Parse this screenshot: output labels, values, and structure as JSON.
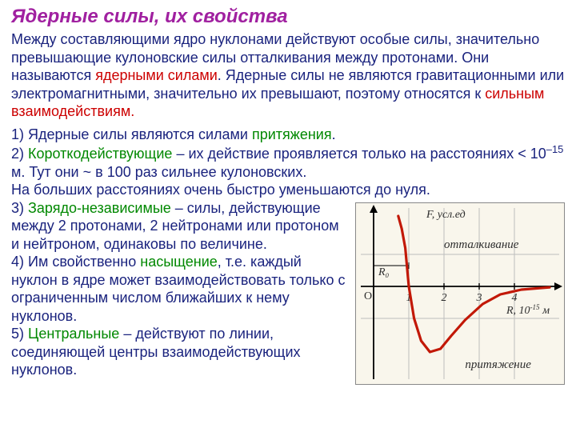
{
  "colors": {
    "body_text": "#1a237e",
    "title": "#a020a0",
    "accent_red": "#cc0000",
    "accent_green": "#008800",
    "chart_curve": "#c21807",
    "chart_axis": "#000000",
    "chart_grid": "#bdbdbd",
    "chart_bg": "#f9f6ec",
    "chart_label": "#2e2e2e"
  },
  "title": "Ядерные силы, их свойства",
  "intro": {
    "p1": "Между составляющими ядро нуклонами действуют особые силы, значительно превышающие кулоновские силы отталкивания между протонами. Они называются ",
    "red1": "ядерными силами",
    "p2": ". Ядерные силы не являются гравитационными или электромагнитными, значительно их превышают, поэтому относятся к ",
    "red2": "сильным взаимодействиям."
  },
  "items": {
    "i1a": "1) Ядерные силы являются силами ",
    "i1b": "притяжения",
    "i1c": ".",
    "i2a": "2) ",
    "i2b": "Короткодействующие",
    "i2c": " – их действие проявляется только на расстояниях  < 10",
    "i2exp": "–15",
    "i2d": " м. Тут они ~ в 100 раз сильнее кулоновских.",
    "i2e": "На больших расстояниях очень быстро уменьшаются до нуля.",
    "i3a": "3) ",
    "i3b": "Зарядо-независимые",
    "i3c": " – силы, действующие между 2 протонами, 2 нейтронами или протоном и нейтроном, одинаковы по величине.",
    "i4a": "4) Им свойственно ",
    "i4b": "насыщение",
    "i4c": ", т.е. каждый нуклон в ядре может взаимодействовать только с ограниченным числом ближайших к нему нуклонов.",
    "i5a": "5) ",
    "i5b": "Центральные",
    "i5c": " – действуют по линии, соединяющей центры взаимодействующих нуклонов."
  },
  "chart": {
    "type": "line",
    "y_label": "F, усл.ед",
    "x_label": "R, 10⁻¹⁵ м",
    "x_label_sup": "-15",
    "R0_label": "R₀",
    "origin_label": "O",
    "x_ticks": [
      "1",
      "2",
      "3",
      "4"
    ],
    "annotation_top": "отталкивание",
    "annotation_bottom": "притяжение",
    "xlim": [
      0,
      5
    ],
    "ylim": [
      -2,
      2
    ],
    "curve_points": [
      [
        0.7,
        2.2
      ],
      [
        0.8,
        1.8
      ],
      [
        0.9,
        1.2
      ],
      [
        1.0,
        0.0
      ],
      [
        1.15,
        -1.0
      ],
      [
        1.35,
        -1.7
      ],
      [
        1.6,
        -2.05
      ],
      [
        1.9,
        -1.95
      ],
      [
        2.2,
        -1.55
      ],
      [
        2.6,
        -1.05
      ],
      [
        3.1,
        -0.55
      ],
      [
        3.6,
        -0.25
      ],
      [
        4.2,
        -0.1
      ],
      [
        5.0,
        -0.03
      ]
    ],
    "axis_width": 1.8,
    "curve_width": 3.2,
    "tick_fontsize": 14,
    "label_fontsize": 14
  }
}
